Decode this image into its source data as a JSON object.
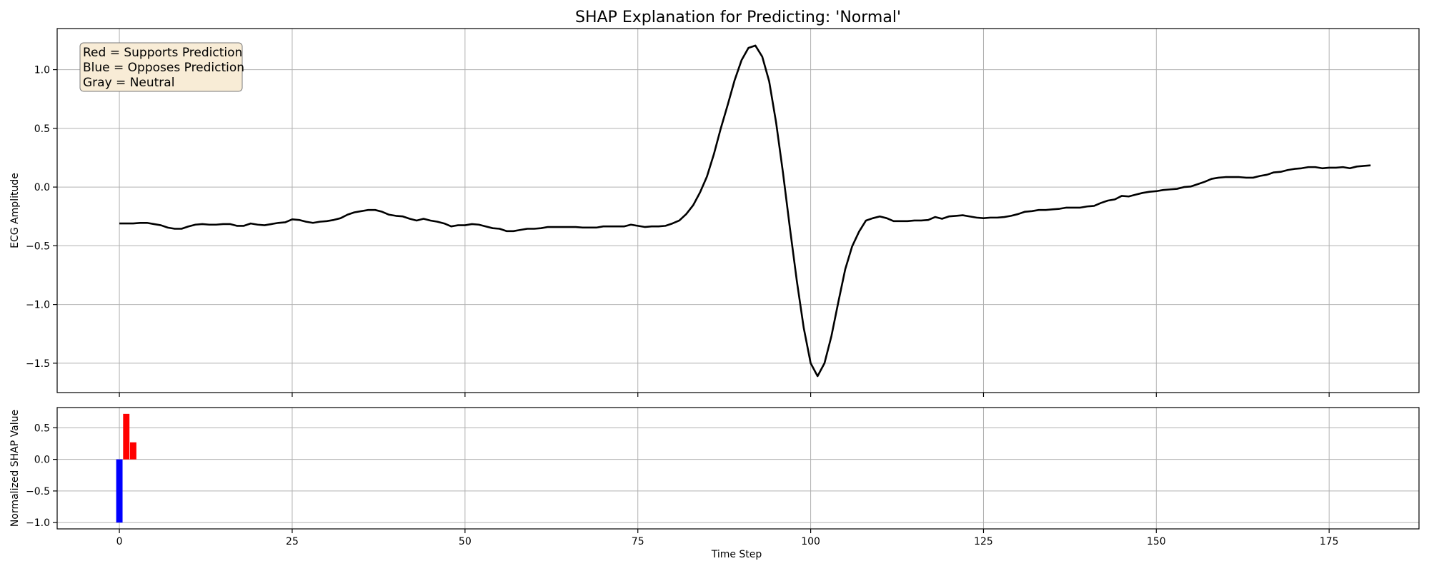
{
  "chart_data": [
    {
      "type": "line",
      "title": "SHAP Explanation for Predicting: 'Normal'",
      "ylabel": "ECG Amplitude",
      "xlabel": "",
      "xlim": [
        -9,
        188
      ],
      "ylim": [
        -1.75,
        1.35
      ],
      "x_ticks": [
        0,
        25,
        50,
        75,
        100,
        125,
        150,
        175
      ],
      "y_ticks": [
        -1.5,
        -1.0,
        -0.5,
        0.0,
        0.5,
        1.0
      ],
      "y_tick_labels": [
        "−1.5",
        "−1.0",
        "−0.5",
        "0.0",
        "0.5",
        "1.0"
      ],
      "grid": true,
      "legend_box": {
        "lines": [
          "Red = Supports Prediction",
          "Blue = Opposes Prediction",
          "Gray = Neutral"
        ],
        "placement": "top-left",
        "background": "#f8ecd6"
      },
      "series": [
        {
          "color": "#000000",
          "values": [
            -0.31,
            -0.31,
            -0.31,
            -0.305,
            -0.305,
            -0.315,
            -0.325,
            -0.345,
            -0.355,
            -0.355,
            -0.335,
            -0.32,
            -0.315,
            -0.32,
            -0.32,
            -0.315,
            -0.315,
            -0.33,
            -0.33,
            -0.31,
            -0.32,
            -0.325,
            -0.315,
            -0.305,
            -0.3,
            -0.275,
            -0.28,
            -0.295,
            -0.305,
            -0.295,
            -0.29,
            -0.28,
            -0.265,
            -0.235,
            -0.215,
            -0.205,
            -0.195,
            -0.195,
            -0.21,
            -0.235,
            -0.245,
            -0.25,
            -0.27,
            -0.285,
            -0.27,
            -0.285,
            -0.295,
            -0.31,
            -0.335,
            -0.325,
            -0.325,
            -0.315,
            -0.32,
            -0.335,
            -0.35,
            -0.355,
            -0.375,
            -0.375,
            -0.365,
            -0.355,
            -0.355,
            -0.35,
            -0.34,
            -0.34,
            -0.34,
            -0.34,
            -0.34,
            -0.345,
            -0.345,
            -0.345,
            -0.335,
            -0.335,
            -0.335,
            -0.335,
            -0.32,
            -0.33,
            -0.34,
            -0.335,
            -0.335,
            -0.33,
            -0.31,
            -0.285,
            -0.23,
            -0.155,
            -0.045,
            0.09,
            0.28,
            0.5,
            0.7,
            0.91,
            1.08,
            1.185,
            1.205,
            1.11,
            0.9,
            0.55,
            0.12,
            -0.35,
            -0.8,
            -1.2,
            -1.5,
            -1.61,
            -1.5,
            -1.27,
            -0.98,
            -0.7,
            -0.505,
            -0.38,
            -0.285,
            -0.265,
            -0.25,
            -0.265,
            -0.29,
            -0.29,
            -0.29,
            -0.285,
            -0.285,
            -0.28,
            -0.255,
            -0.27,
            -0.25,
            -0.245,
            -0.24,
            -0.25,
            -0.26,
            -0.265,
            -0.26,
            -0.26,
            -0.255,
            -0.245,
            -0.23,
            -0.21,
            -0.205,
            -0.195,
            -0.195,
            -0.19,
            -0.185,
            -0.175,
            -0.175,
            -0.175,
            -0.165,
            -0.16,
            -0.135,
            -0.115,
            -0.105,
            -0.075,
            -0.08,
            -0.065,
            -0.05,
            -0.04,
            -0.035,
            -0.025,
            -0.02,
            -0.015,
            0.0,
            0.005,
            0.025,
            0.045,
            0.07,
            0.08,
            0.085,
            0.085,
            0.085,
            0.08,
            0.08,
            0.095,
            0.105,
            0.125,
            0.13,
            0.145,
            0.155,
            0.16,
            0.17,
            0.17,
            0.16,
            0.165,
            0.165,
            0.17,
            0.16,
            0.175,
            0.18,
            0.185
          ]
        }
      ]
    },
    {
      "type": "bar",
      "xlabel": "Time Step",
      "ylabel": "Normalized SHAP Value",
      "xlim": [
        -9,
        188
      ],
      "ylim": [
        -1.1,
        0.82
      ],
      "x_ticks": [
        0,
        25,
        50,
        75,
        100,
        125,
        150,
        175
      ],
      "y_ticks": [
        -1.0,
        -0.5,
        0.0,
        0.5
      ],
      "y_tick_labels": [
        "−1.0",
        "−0.5",
        "0.0",
        "0.5"
      ],
      "grid": true,
      "colors": {
        "supports": "#ff0000",
        "opposes": "#0000ff"
      },
      "bars": [
        {
          "x": 0,
          "value": -1.0
        },
        {
          "x": 1,
          "value": 0.72
        },
        {
          "x": 2,
          "value": 0.27
        }
      ]
    }
  ]
}
